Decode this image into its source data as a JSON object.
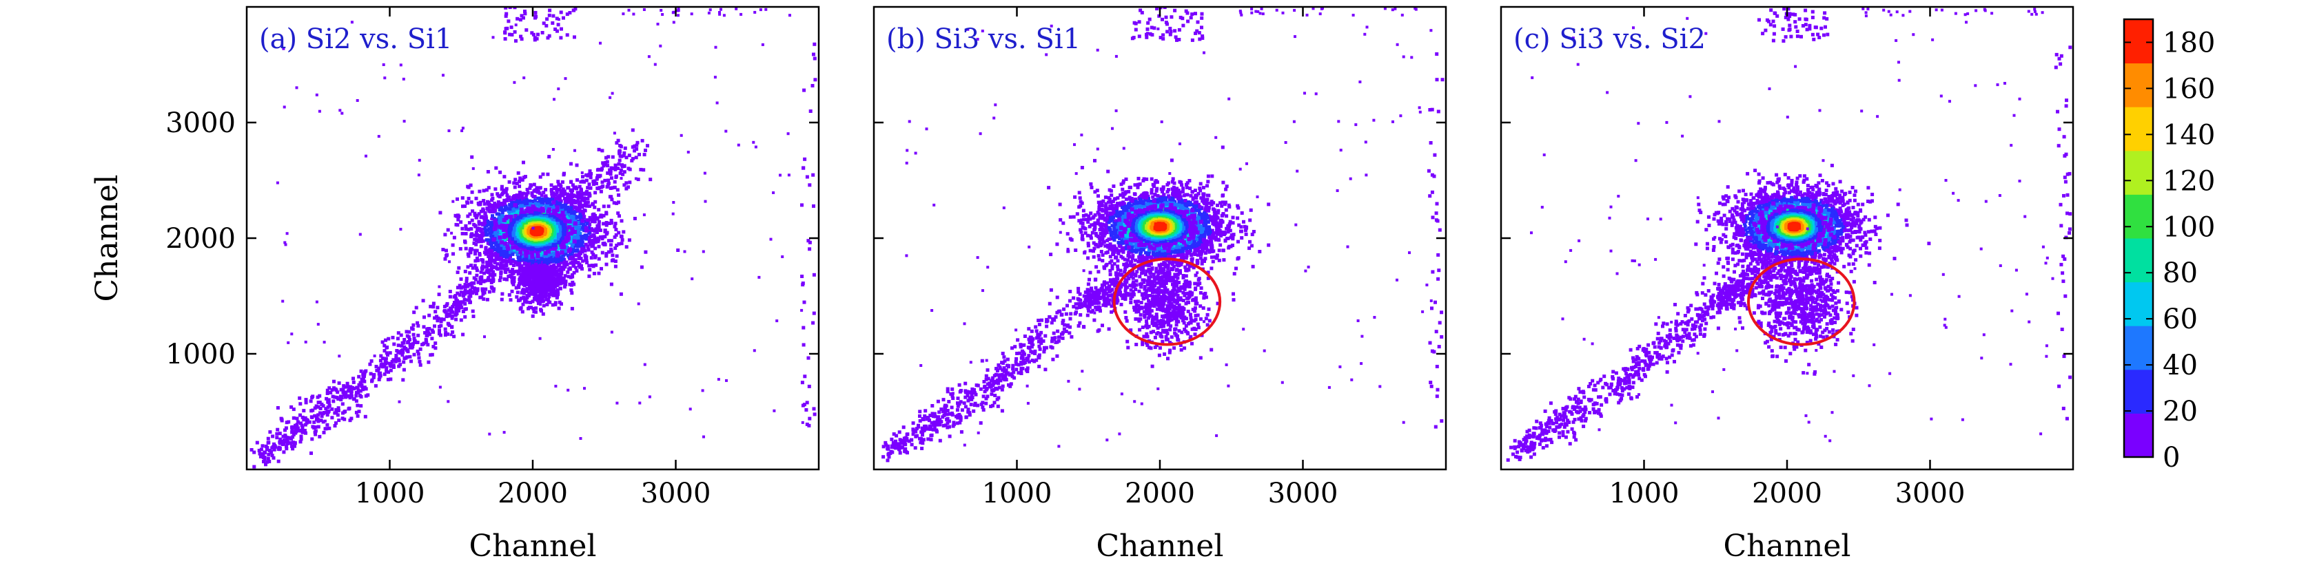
{
  "chart_data": [
    {
      "type": "heatmap",
      "panel": "a",
      "title": "(a) Si2 vs. Si1",
      "xlabel": "Channel",
      "ylabel": "Channel",
      "xlim": [
        0,
        4000
      ],
      "ylim": [
        0,
        4000
      ],
      "xticks": [
        1000,
        2000,
        3000
      ],
      "yticks": [
        1000,
        2000,
        3000
      ],
      "diagonal": [
        [
          100,
          120
        ],
        [
          700,
          620
        ],
        [
          1400,
          1350
        ],
        [
          2000,
          2050
        ],
        [
          2700,
          2750
        ]
      ],
      "main_cluster": {
        "center": [
          2030,
          2060
        ],
        "spread": [
          230,
          180
        ],
        "peak_count": 185
      },
      "secondary_cluster": {
        "center": [
          2050,
          1650
        ],
        "spread": [
          80,
          120
        ]
      },
      "circle": null
    },
    {
      "type": "heatmap",
      "panel": "b",
      "title": "(b) Si3 vs. Si1",
      "xlabel": "Channel",
      "ylabel": "",
      "xlim": [
        0,
        4000
      ],
      "ylim": [
        0,
        4000
      ],
      "xticks": [
        1000,
        2000,
        3000
      ],
      "yticks": [
        1000,
        2000,
        3000
      ],
      "diagonal": [
        [
          100,
          150
        ],
        [
          800,
          700
        ],
        [
          1500,
          1450
        ],
        [
          1800,
          1650
        ]
      ],
      "main_cluster": {
        "center": [
          2000,
          2100
        ],
        "spread": [
          230,
          160
        ],
        "peak_count": 185
      },
      "secondary_cluster": {
        "center": [
          2050,
          1450
        ],
        "spread": [
          130,
          200
        ]
      },
      "circle": {
        "center": [
          2050,
          1450
        ],
        "radius": 370
      }
    },
    {
      "type": "heatmap",
      "panel": "c",
      "title": "(c) Si3 vs. Si2",
      "xlabel": "Channel",
      "ylabel": "",
      "xlim": [
        0,
        4000
      ],
      "ylim": [
        0,
        4000
      ],
      "xticks": [
        1000,
        2000,
        3000
      ],
      "yticks": [
        1000,
        2000,
        3000
      ],
      "diagonal": [
        [
          100,
          150
        ],
        [
          800,
          700
        ],
        [
          1500,
          1450
        ],
        [
          1850,
          1700
        ]
      ],
      "main_cluster": {
        "center": [
          2050,
          2100
        ],
        "spread": [
          220,
          160
        ],
        "peak_count": 185
      },
      "secondary_cluster": {
        "center": [
          2100,
          1450
        ],
        "spread": [
          150,
          200
        ]
      },
      "circle": {
        "center": [
          2100,
          1450
        ],
        "radius": 370
      }
    }
  ],
  "colorbar": {
    "min": 0,
    "max": 190,
    "ticks": [
      "0",
      "20",
      "40",
      "60",
      "80",
      "100",
      "120",
      "140",
      "160",
      "180"
    ],
    "colors": [
      "#7a00ff",
      "#2a2aff",
      "#1e78ff",
      "#00c8f0",
      "#00e0a0",
      "#30e040",
      "#b0f020",
      "#ffd000",
      "#ff8c00",
      "#ff2000"
    ]
  },
  "colors": {
    "title_text": "#1f1fcc",
    "circle": "#e8141e",
    "axis": "#000000"
  }
}
